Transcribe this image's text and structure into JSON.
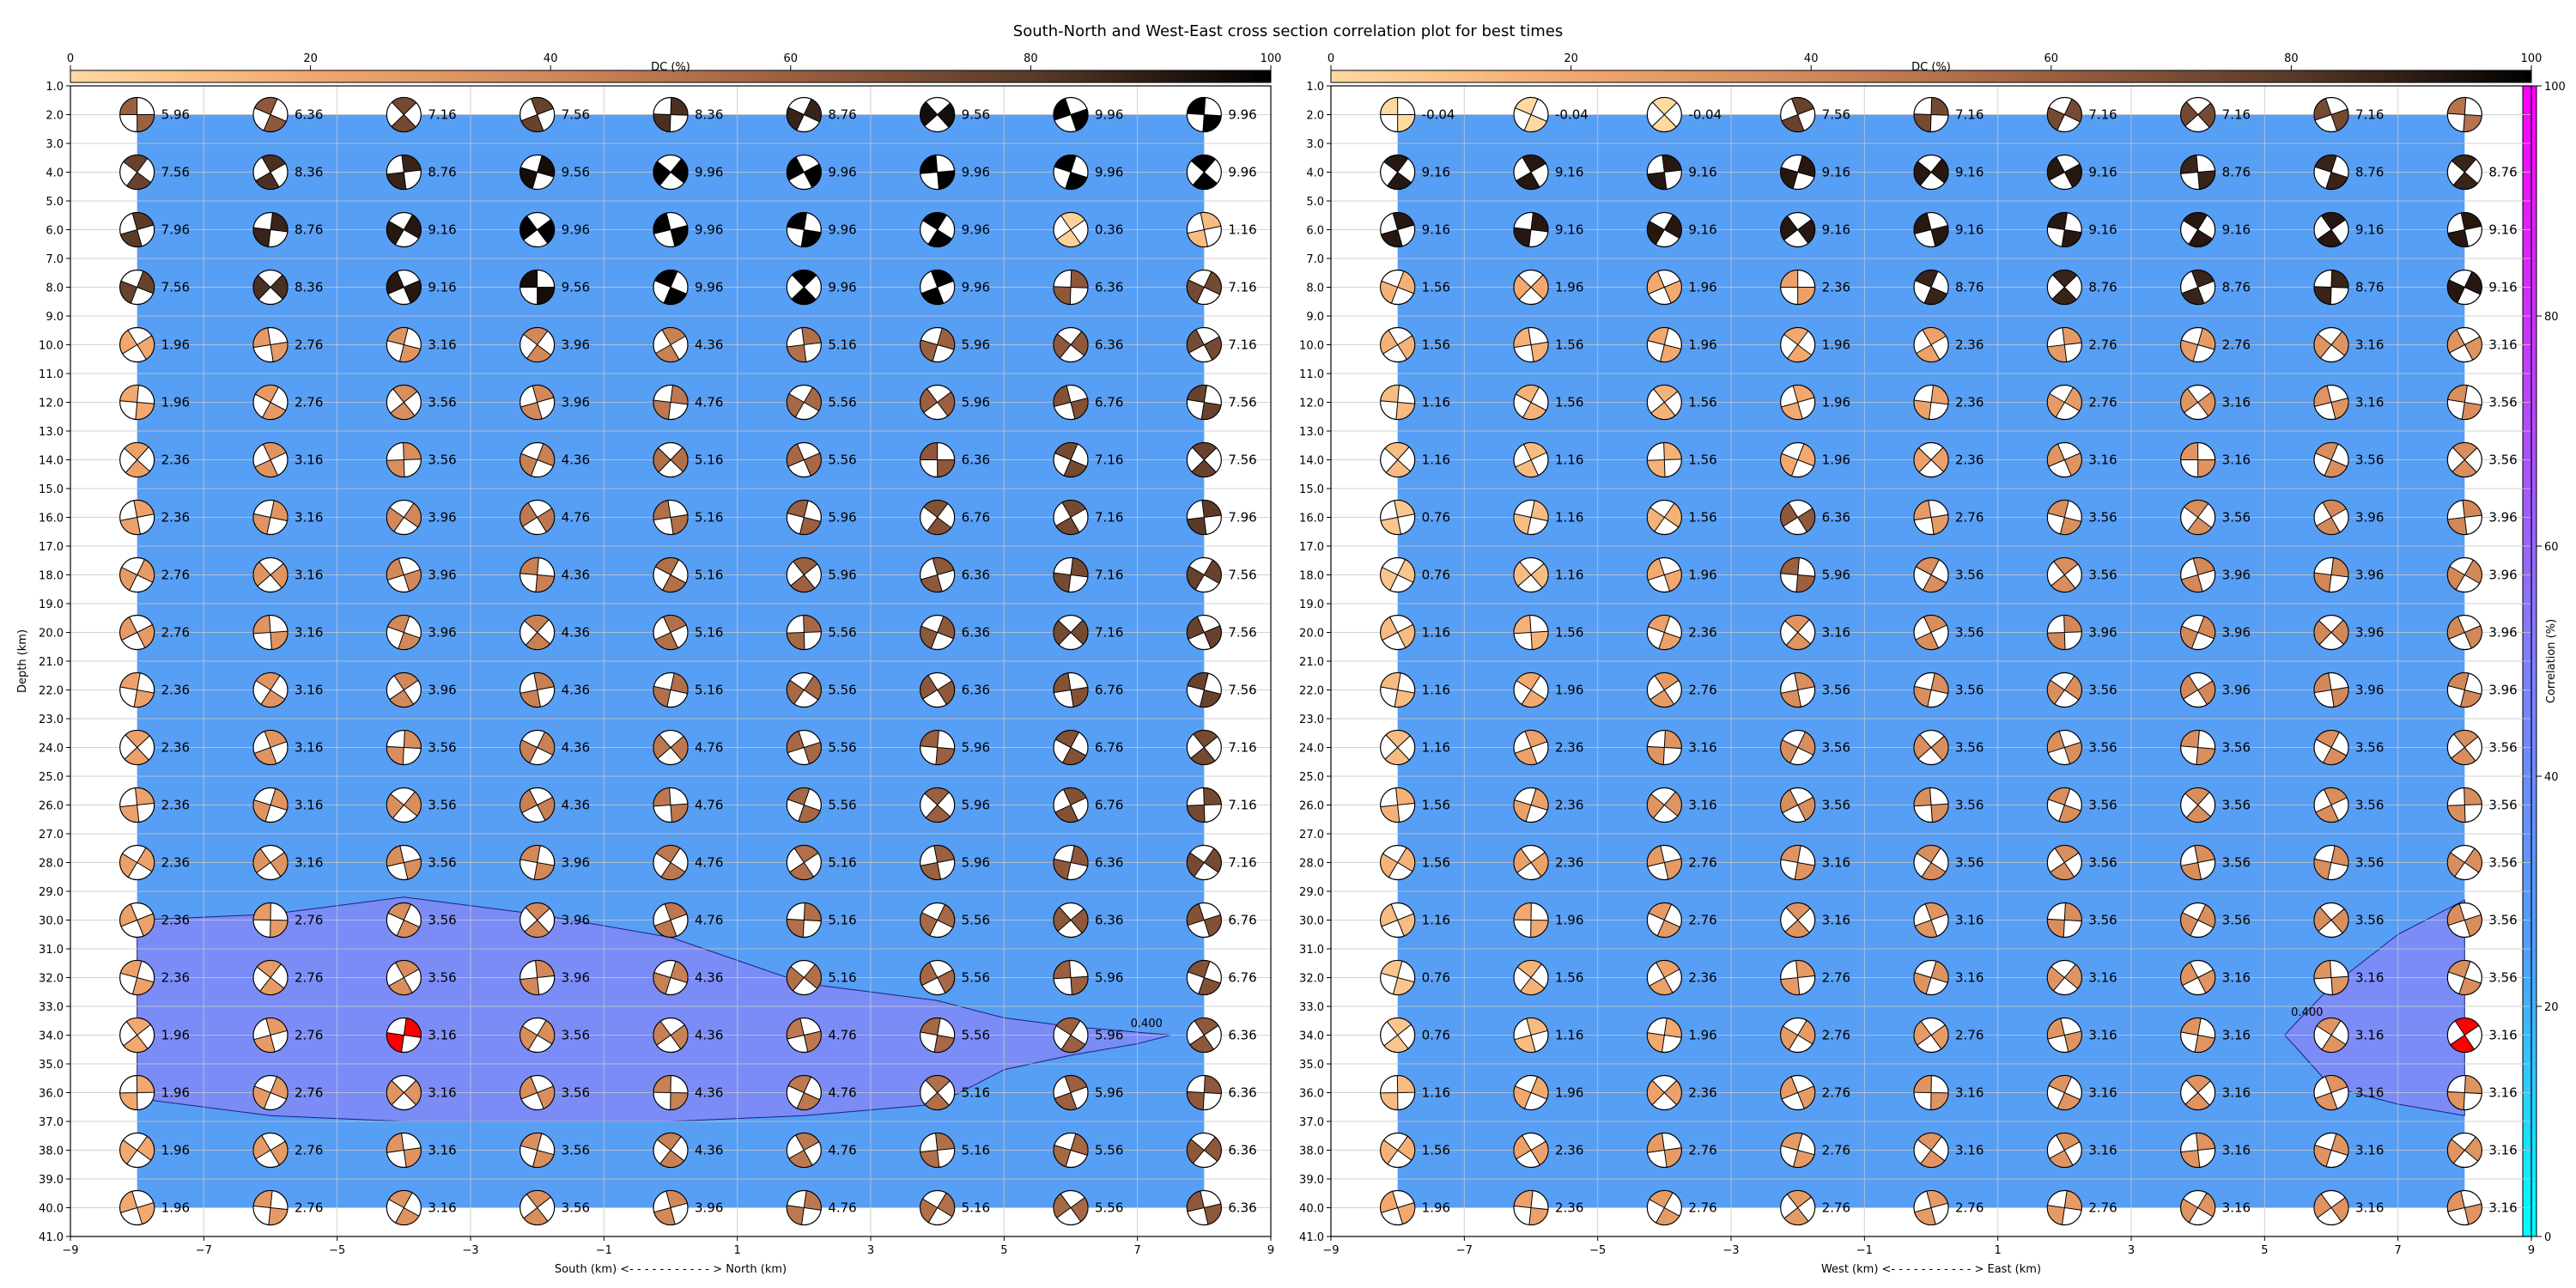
{
  "title": "South-North and West-East cross section correlation plot for best times",
  "colorbar_dc": {
    "label": "DC (%)",
    "ticks": [
      "0",
      "20",
      "40",
      "60",
      "80",
      "100"
    ],
    "colors": [
      "#ffd9a0",
      "#f2a76d",
      "#d2875a",
      "#9a5f3f",
      "#5a3a28",
      "#000000"
    ]
  },
  "colorbar_corr": {
    "label": "Correlation (%)",
    "ticks": [
      "0",
      "20",
      "40",
      "60",
      "80",
      "100"
    ],
    "colors": [
      "#00ffff",
      "#4f9fff",
      "#7f7fff",
      "#bf3fff",
      "#ff00ff"
    ]
  },
  "y_tick_labels": [
    "1.0",
    "2.0",
    "3.0",
    "4.0",
    "5.0",
    "6.0",
    "7.0",
    "8.0",
    "9.0",
    "10.0",
    "11.0",
    "12.0",
    "13.0",
    "14.0",
    "15.0",
    "16.0",
    "17.0",
    "18.0",
    "19.0",
    "20.0",
    "21.0",
    "22.0",
    "23.0",
    "24.0",
    "25.0",
    "26.0",
    "27.0",
    "28.0",
    "29.0",
    "30.0",
    "31.0",
    "32.0",
    "33.0",
    "34.0",
    "35.0",
    "36.0",
    "37.0",
    "38.0",
    "39.0",
    "40.0",
    "41.0"
  ],
  "x_tick_labels": [
    "−9",
    "−7",
    "−5",
    "−3",
    "−1",
    "1",
    "3",
    "5",
    "7",
    "9"
  ],
  "colors": {
    "background_fill": "#579ef5",
    "contour_fill": "#7b8cf7",
    "best_solution": "#ff0000",
    "axes_frame": "#000000",
    "grid": "#c8c8c8"
  },
  "chart_data": [
    {
      "type": "scatter",
      "name": "south_north",
      "xlabel": "South (km) <- - - - - - - - - - - > North (km)",
      "ylabel": "Depth (km)",
      "xlim": [
        -9,
        9
      ],
      "ylim": [
        41,
        1
      ],
      "x": [
        -8,
        -6,
        -4,
        -2,
        0,
        2,
        4,
        6,
        8
      ],
      "depths": [
        2,
        4,
        6,
        8,
        10,
        12,
        14,
        16,
        18,
        20,
        22,
        24,
        26,
        28,
        30,
        32,
        34,
        36,
        38,
        40
      ],
      "labels": [
        [
          "5.96",
          "6.36",
          "7.16",
          "7.56",
          "8.36",
          "8.76",
          "9.56",
          "9.96",
          "9.96"
        ],
        [
          "7.56",
          "8.36",
          "8.76",
          "9.56",
          "9.96",
          "9.96",
          "9.96",
          "9.96",
          "9.96"
        ],
        [
          "7.96",
          "8.76",
          "9.16",
          "9.96",
          "9.96",
          "9.96",
          "9.96",
          "0.36",
          "1.16"
        ],
        [
          "7.56",
          "8.36",
          "9.16",
          "9.56",
          "9.96",
          "9.96",
          "9.96",
          "6.36",
          "7.16"
        ],
        [
          "1.96",
          "2.76",
          "3.16",
          "3.96",
          "4.36",
          "5.16",
          "5.96",
          "6.36",
          "7.16"
        ],
        [
          "1.96",
          "2.76",
          "3.56",
          "3.96",
          "4.76",
          "5.56",
          "5.96",
          "6.76",
          "7.56"
        ],
        [
          "2.36",
          "3.16",
          "3.56",
          "4.36",
          "5.16",
          "5.56",
          "6.36",
          "7.16",
          "7.56"
        ],
        [
          "2.36",
          "3.16",
          "3.96",
          "4.76",
          "5.16",
          "5.96",
          "6.76",
          "7.16",
          "7.96"
        ],
        [
          "2.76",
          "3.16",
          "3.96",
          "4.36",
          "5.16",
          "5.96",
          "6.36",
          "7.16",
          "7.56"
        ],
        [
          "2.76",
          "3.16",
          "3.96",
          "4.36",
          "5.16",
          "5.56",
          "6.36",
          "7.16",
          "7.56"
        ],
        [
          "2.36",
          "3.16",
          "3.96",
          "4.36",
          "5.16",
          "5.56",
          "6.36",
          "6.76",
          "7.56"
        ],
        [
          "2.36",
          "3.16",
          "3.56",
          "4.36",
          "4.76",
          "5.56",
          "5.96",
          "6.76",
          "7.16"
        ],
        [
          "2.36",
          "3.16",
          "3.56",
          "4.36",
          "4.76",
          "5.56",
          "5.96",
          "6.76",
          "7.16"
        ],
        [
          "2.36",
          "3.16",
          "3.56",
          "3.96",
          "4.76",
          "5.16",
          "5.96",
          "6.36",
          "7.16"
        ],
        [
          "2.36",
          "2.76",
          "3.56",
          "3.96",
          "4.76",
          "5.16",
          "5.56",
          "6.36",
          "6.76"
        ],
        [
          "2.36",
          "2.76",
          "3.56",
          "3.96",
          "4.36",
          "5.16",
          "5.56",
          "5.96",
          "6.76"
        ],
        [
          "1.96",
          "2.76",
          "3.16",
          "3.56",
          "4.36",
          "4.76",
          "5.56",
          "5.96",
          "6.36"
        ],
        [
          "1.96",
          "2.76",
          "3.16",
          "3.56",
          "4.36",
          "4.76",
          "5.16",
          "5.96",
          "6.36"
        ],
        [
          "1.96",
          "2.76",
          "3.16",
          "3.56",
          "4.36",
          "4.76",
          "5.16",
          "5.56",
          "6.36"
        ],
        [
          "1.96",
          "2.76",
          "3.16",
          "3.56",
          "3.96",
          "4.76",
          "5.16",
          "5.56",
          "6.36"
        ]
      ],
      "best": {
        "x": -4,
        "depth": 34
      },
      "contour_label": "0.400",
      "contour": [
        [
          -8,
          30
        ],
        [
          -6,
          29.8
        ],
        [
          -4,
          29.2
        ],
        [
          -2,
          29.8
        ],
        [
          0,
          30.6
        ],
        [
          2,
          32.2
        ],
        [
          4,
          32.8
        ],
        [
          5,
          33.4
        ],
        [
          6,
          33.7
        ],
        [
          7,
          33.9
        ],
        [
          7.5,
          34
        ],
        [
          7,
          34.3
        ],
        [
          6,
          34.7
        ],
        [
          5,
          35.2
        ],
        [
          4,
          36.4
        ],
        [
          2,
          36.8
        ],
        [
          0,
          37
        ],
        [
          -2,
          37
        ],
        [
          -4,
          37
        ],
        [
          -6,
          36.8
        ],
        [
          -8,
          36.2
        ]
      ]
    },
    {
      "type": "scatter",
      "name": "west_east",
      "xlabel": "West (km) <- - - - - - - - - - - > East (km)",
      "ylabel": "",
      "xlim": [
        -9,
        9
      ],
      "ylim": [
        41,
        1
      ],
      "x": [
        -8,
        -6,
        -4,
        -2,
        0,
        2,
        4,
        6,
        8
      ],
      "depths": [
        2,
        4,
        6,
        8,
        10,
        12,
        14,
        16,
        18,
        20,
        22,
        24,
        26,
        28,
        30,
        32,
        34,
        36,
        38,
        40
      ],
      "labels": [
        [
          "-0.04",
          "-0.04",
          "-0.04",
          "7.56",
          "7.16",
          "7.16",
          "7.16",
          "7.16",
          ""
        ],
        [
          "9.16",
          "9.16",
          "9.16",
          "9.16",
          "9.16",
          "9.16",
          "8.76",
          "8.76",
          "8.76"
        ],
        [
          "9.16",
          "9.16",
          "9.16",
          "9.16",
          "9.16",
          "9.16",
          "9.16",
          "9.16",
          "9.16"
        ],
        [
          "1.56",
          "1.96",
          "1.96",
          "2.36",
          "8.76",
          "8.76",
          "8.76",
          "8.76",
          "9.16"
        ],
        [
          "1.56",
          "1.56",
          "1.96",
          "1.96",
          "2.36",
          "2.76",
          "2.76",
          "3.16",
          "3.16"
        ],
        [
          "1.16",
          "1.56",
          "1.56",
          "1.96",
          "2.36",
          "2.76",
          "3.16",
          "3.16",
          "3.56"
        ],
        [
          "1.16",
          "1.16",
          "1.56",
          "1.96",
          "2.36",
          "3.16",
          "3.16",
          "3.56",
          "3.56"
        ],
        [
          "0.76",
          "1.16",
          "1.56",
          "6.36",
          "2.76",
          "3.56",
          "3.56",
          "3.96",
          "3.96"
        ],
        [
          "0.76",
          "1.16",
          "1.96",
          "5.96",
          "3.56",
          "3.56",
          "3.96",
          "3.96",
          "3.96"
        ],
        [
          "1.16",
          "1.56",
          "2.36",
          "3.16",
          "3.56",
          "3.96",
          "3.96",
          "3.96",
          "3.96"
        ],
        [
          "1.16",
          "1.96",
          "2.76",
          "3.56",
          "3.56",
          "3.56",
          "3.96",
          "3.96",
          "3.96"
        ],
        [
          "1.16",
          "2.36",
          "3.16",
          "3.56",
          "3.56",
          "3.56",
          "3.56",
          "3.56",
          "3.56"
        ],
        [
          "1.56",
          "2.36",
          "3.16",
          "3.56",
          "3.56",
          "3.56",
          "3.56",
          "3.56",
          "3.56"
        ],
        [
          "1.56",
          "2.36",
          "2.76",
          "3.16",
          "3.56",
          "3.56",
          "3.56",
          "3.56",
          "3.56"
        ],
        [
          "1.16",
          "1.96",
          "2.76",
          "3.16",
          "3.16",
          "3.56",
          "3.56",
          "3.56",
          "3.56"
        ],
        [
          "0.76",
          "1.56",
          "2.36",
          "2.76",
          "3.16",
          "3.16",
          "3.16",
          "3.16",
          "3.56"
        ],
        [
          "0.76",
          "1.16",
          "1.96",
          "2.76",
          "2.76",
          "3.16",
          "3.16",
          "3.16",
          "3.16"
        ],
        [
          "1.16",
          "1.96",
          "2.36",
          "2.76",
          "3.16",
          "3.16",
          "3.16",
          "3.16",
          "3.16"
        ],
        [
          "1.56",
          "2.36",
          "2.76",
          "2.76",
          "3.16",
          "3.16",
          "3.16",
          "3.16",
          "3.16"
        ],
        [
          "1.96",
          "2.36",
          "2.76",
          "2.76",
          "2.76",
          "2.76",
          "3.16",
          "3.16",
          "3.16"
        ]
      ],
      "best": {
        "x": 8,
        "depth": 34
      },
      "contour_label": "0.400",
      "contour": [
        [
          8,
          29.3
        ],
        [
          7,
          30.5
        ],
        [
          6,
          32.3
        ],
        [
          5.5,
          33.5
        ],
        [
          5.3,
          34
        ],
        [
          5.5,
          34.5
        ],
        [
          6,
          35.8
        ],
        [
          7,
          36.4
        ],
        [
          8,
          36.8
        ]
      ]
    }
  ]
}
